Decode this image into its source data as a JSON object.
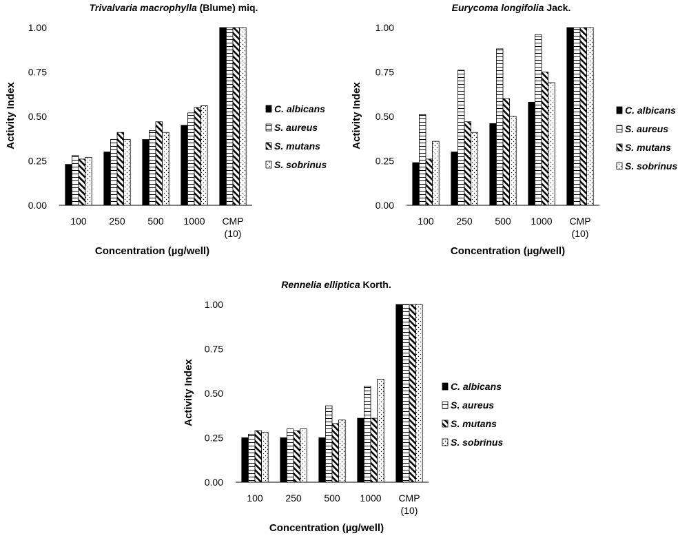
{
  "chart_data": [
    {
      "type": "bar",
      "title_italic": "Trivalvaria macrophylla",
      "title_rest": " (Blume) miq.",
      "xlabel": "Concentration (µg/well)",
      "ylabel": "Activity Index",
      "ylim": [
        0,
        1
      ],
      "yticks": [
        "0.00",
        "0.25",
        "0.50",
        "0.75",
        "1.00"
      ],
      "categories": [
        [
          "100"
        ],
        [
          "250"
        ],
        [
          "500"
        ],
        [
          "1000"
        ],
        [
          "CMP",
          "(10)"
        ]
      ],
      "legend_position": "right",
      "series": [
        {
          "name": "C. albicans",
          "pattern": "solid",
          "values": [
            0.23,
            0.3,
            0.37,
            0.45,
            1.0
          ]
        },
        {
          "name": "S. aureus",
          "pattern": "hstripe",
          "values": [
            0.28,
            0.37,
            0.42,
            0.52,
            1.0
          ]
        },
        {
          "name": "S. mutans",
          "pattern": "diag",
          "values": [
            0.26,
            0.41,
            0.47,
            0.55,
            1.0
          ]
        },
        {
          "name": "S. sobrinus",
          "pattern": "dots",
          "values": [
            0.27,
            0.37,
            0.41,
            0.56,
            1.0
          ]
        }
      ]
    },
    {
      "type": "bar",
      "title_italic": "Eurycoma longifolia",
      "title_rest": " Jack.",
      "xlabel": "Concentration (µg/well)",
      "ylabel": "Activity Index",
      "ylim": [
        0,
        1
      ],
      "yticks": [
        "0.00",
        "0.25",
        "0.50",
        "0.75",
        "1.00"
      ],
      "categories": [
        [
          "100"
        ],
        [
          "250"
        ],
        [
          "500"
        ],
        [
          "1000"
        ],
        [
          "CMP",
          "(10)"
        ]
      ],
      "legend_position": "right",
      "series": [
        {
          "name": "C. albicans",
          "pattern": "solid",
          "values": [
            0.24,
            0.3,
            0.46,
            0.58,
            1.0
          ]
        },
        {
          "name": "S. aureus",
          "pattern": "hstripe",
          "values": [
            0.51,
            0.76,
            0.88,
            0.96,
            1.0
          ]
        },
        {
          "name": "S. mutans",
          "pattern": "diag",
          "values": [
            0.26,
            0.47,
            0.6,
            0.75,
            1.0
          ]
        },
        {
          "name": "S. sobrinus",
          "pattern": "dots",
          "values": [
            0.36,
            0.41,
            0.5,
            0.69,
            1.0
          ]
        }
      ]
    },
    {
      "type": "bar",
      "title_italic": "Rennelia elliptica",
      "title_rest": " Korth.",
      "xlabel": "Concentration (µg/well)",
      "ylabel": "Activity Index",
      "ylim": [
        0,
        1
      ],
      "yticks": [
        "0.00",
        "0.25",
        "0.50",
        "0.75",
        "1.00"
      ],
      "categories": [
        [
          "100"
        ],
        [
          "250"
        ],
        [
          "500"
        ],
        [
          "1000"
        ],
        [
          "CMP",
          "(10)"
        ]
      ],
      "legend_position": "right",
      "series": [
        {
          "name": "C. albicans",
          "pattern": "solid",
          "values": [
            0.25,
            0.25,
            0.25,
            0.36,
            1.0
          ]
        },
        {
          "name": "S. aureus",
          "pattern": "hstripe",
          "values": [
            0.27,
            0.3,
            0.43,
            0.54,
            1.0
          ]
        },
        {
          "name": "S. mutans",
          "pattern": "diag",
          "values": [
            0.29,
            0.29,
            0.33,
            0.36,
            1.0
          ]
        },
        {
          "name": "S. sobrinus",
          "pattern": "dots",
          "values": [
            0.28,
            0.3,
            0.35,
            0.58,
            1.0
          ]
        }
      ]
    }
  ]
}
